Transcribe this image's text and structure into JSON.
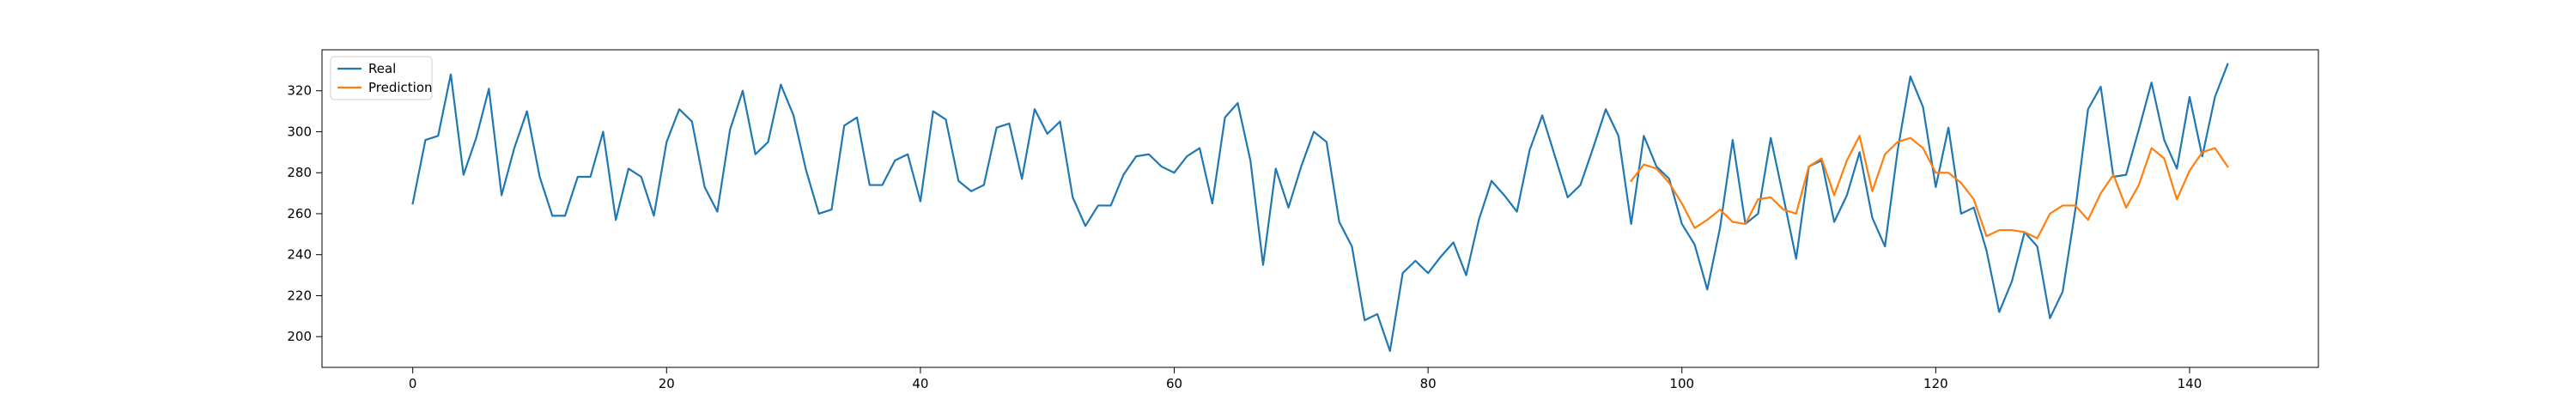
{
  "chart_data": {
    "type": "line",
    "title": "",
    "xlabel": "",
    "ylabel": "",
    "xlim": [
      -7.15,
      150.15
    ],
    "ylim": [
      185.0,
      340.0
    ],
    "xticks": [
      0,
      20,
      40,
      60,
      80,
      100,
      120,
      140
    ],
    "yticks": [
      200,
      220,
      240,
      260,
      280,
      300,
      320
    ],
    "grid": false,
    "legend_position": "top-left",
    "series": [
      {
        "name": "Real",
        "color": "#1f77b4",
        "x_start": 0,
        "values": [
          265,
          296,
          298,
          328,
          279,
          297,
          321,
          269,
          292,
          310,
          278,
          259,
          259,
          278,
          278,
          300,
          257,
          282,
          278,
          259,
          295,
          311,
          305,
          273,
          261,
          301,
          320,
          289,
          295,
          323,
          308,
          281,
          260,
          262,
          303,
          307,
          274,
          274,
          286,
          289,
          266,
          310,
          306,
          276,
          271,
          274,
          302,
          304,
          277,
          311,
          299,
          305,
          268,
          254,
          264,
          264,
          279,
          288,
          289,
          283,
          280,
          288,
          292,
          265,
          307,
          314,
          286,
          235,
          282,
          263,
          283,
          300,
          295,
          256,
          244,
          208,
          211,
          193,
          231,
          237,
          231,
          239,
          246,
          230,
          257,
          276,
          269,
          261,
          291,
          308,
          288,
          268,
          274,
          292,
          311,
          298,
          255,
          298,
          283,
          277,
          255,
          245,
          223,
          253,
          296,
          255,
          260,
          297,
          268,
          238,
          283,
          286,
          256,
          269,
          290,
          258,
          244,
          291,
          327,
          312,
          273,
          302,
          260,
          263,
          242,
          212,
          227,
          251,
          244,
          209,
          222,
          262,
          311,
          322,
          278,
          279,
          301,
          324,
          296,
          282,
          317,
          288,
          317,
          333
        ]
      },
      {
        "name": "Prediction",
        "color": "#ff7f0e",
        "x_start": 96,
        "values": [
          276,
          284,
          282,
          275,
          265,
          253,
          257,
          262,
          256,
          255,
          267,
          268,
          262,
          260,
          283,
          287,
          269,
          286,
          298,
          271,
          289,
          295,
          297,
          292,
          280,
          280,
          275,
          267,
          249,
          252,
          252,
          251,
          248,
          260,
          264,
          264,
          257,
          270,
          279,
          263,
          274,
          292,
          287,
          267,
          281,
          290,
          292,
          283
        ]
      }
    ]
  }
}
